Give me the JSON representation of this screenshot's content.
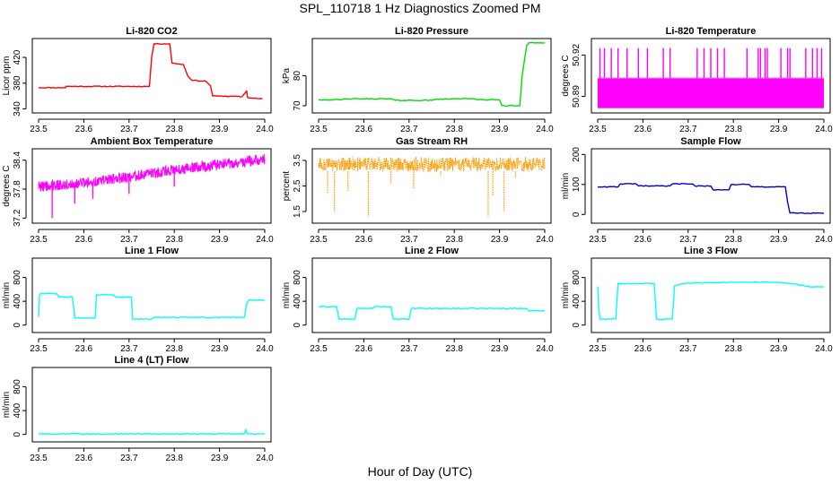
{
  "figure": {
    "title": "SPL_110718  1 Hz Diagnostics Zoomed PM",
    "xlabel": "Hour of Day (UTC)"
  },
  "chart_data": [
    {
      "type": "line",
      "title": "Li-820 CO2",
      "ylabel": "Licor ppm",
      "color": "#ff0000",
      "xlim": [
        23.5,
        24.0
      ],
      "ylim": [
        338,
        445
      ],
      "grid": false,
      "xticks": [
        "23.5",
        "23.6",
        "23.7",
        "23.8",
        "23.9",
        "24.0"
      ],
      "yticks": [
        {
          "v": 340,
          "label": "340"
        },
        {
          "v": 380,
          "label": "380"
        },
        {
          "v": 420,
          "label": "420"
        }
      ],
      "x": [
        23.5,
        23.56,
        23.56,
        23.745,
        23.75,
        23.755,
        23.79,
        23.795,
        23.82,
        23.83,
        23.84,
        23.85,
        23.87,
        23.88,
        23.885,
        23.9,
        23.95,
        23.96,
        23.962,
        23.965,
        23.97,
        23.995
      ],
      "y": [
        373,
        373,
        375,
        375,
        420,
        441,
        441,
        411,
        409,
        391,
        384,
        384,
        383,
        376,
        360,
        360,
        359,
        368,
        358,
        357,
        357,
        356
      ]
    },
    {
      "type": "line",
      "title": "Li-820 Pressure",
      "ylabel": "kPa",
      "color": "#00dd00",
      "xlim": [
        23.5,
        24.0
      ],
      "ylim": [
        68.5,
        91.5
      ],
      "grid": false,
      "xticks": [
        "23.5",
        "23.6",
        "23.7",
        "23.8",
        "23.9",
        "24.0"
      ],
      "yticks": [
        {
          "v": 70,
          "label": "70"
        },
        {
          "v": 80,
          "label": "80"
        }
      ],
      "x": [
        23.5,
        23.55,
        23.56,
        23.66,
        23.67,
        23.75,
        23.76,
        23.79,
        23.8,
        23.84,
        23.85,
        23.9,
        23.905,
        23.91,
        23.945,
        23.95,
        23.96,
        23.965,
        23.97,
        24.0
      ],
      "y": [
        72,
        72,
        72.3,
        72.3,
        71.8,
        71.8,
        72.2,
        72.2,
        72.4,
        72.4,
        72,
        72,
        70.1,
        70,
        70,
        80,
        90,
        91,
        91,
        91
      ]
    },
    {
      "type": "line",
      "title": "Li-820 Temperature",
      "ylabel": "degrees C",
      "color": "#ff00ff",
      "xlim": [
        23.5,
        24.0
      ],
      "ylim": [
        50.88,
        50.93
      ],
      "grid": false,
      "xticks": [
        "23.5",
        "23.6",
        "23.7",
        "23.8",
        "23.9",
        "24.0"
      ],
      "yticks": [
        {
          "v": 50.89,
          "label": "50.89"
        },
        {
          "v": 50.92,
          "label": "50.92"
        }
      ],
      "band": {
        "low": 50.8815,
        "high": 50.9033
      },
      "spikes": [
        23.505,
        23.515,
        23.53,
        23.545,
        23.565,
        23.59,
        23.61,
        23.645,
        23.66,
        23.72,
        23.735,
        23.75,
        23.765,
        23.78,
        23.83,
        23.855,
        23.86,
        23.87,
        23.875,
        23.905,
        23.92,
        23.925,
        23.96,
        23.975,
        23.985,
        23.995
      ],
      "spike_top": 50.925
    },
    {
      "type": "line",
      "title": "Ambient Box Temperature",
      "ylabel": "degrees C",
      "color": "#ff00ff",
      "xlim": [
        23.5,
        24.0
      ],
      "ylim": [
        37.15,
        38.58
      ],
      "grid": false,
      "xticks": [
        "23.5",
        "23.6",
        "23.7",
        "23.8",
        "23.9",
        "24.0"
      ],
      "yticks": [
        {
          "v": 37.2,
          "label": "37.2"
        },
        {
          "v": 37.8,
          "label": "37.8"
        },
        {
          "v": 38.4,
          "label": "38.4"
        }
      ],
      "x": [
        23.5,
        23.6,
        23.7,
        23.8,
        23.9,
        24.0
      ],
      "y": [
        37.85,
        37.93,
        38.05,
        38.2,
        38.31,
        38.42
      ],
      "spread": 0.11,
      "dips": [
        {
          "x": 23.53,
          "y": 37.2
        },
        {
          "x": 23.58,
          "y": 37.5
        },
        {
          "x": 23.62,
          "y": 37.6
        },
        {
          "x": 23.7,
          "y": 37.7
        },
        {
          "x": 23.8,
          "y": 37.85
        }
      ]
    },
    {
      "type": "scatter",
      "title": "Gas Stream RH",
      "ylabel": "percent",
      "color": "#ff9900",
      "xlim": [
        23.5,
        24.0
      ],
      "ylim": [
        1.15,
        3.85
      ],
      "grid": false,
      "xticks": [
        "23.5",
        "23.6",
        "23.7",
        "23.8",
        "23.9",
        "24.0"
      ],
      "yticks": [
        {
          "v": 1.5,
          "label": "1.5"
        },
        {
          "v": 2.5,
          "label": "2.5"
        },
        {
          "v": 3.5,
          "label": "3.5"
        }
      ],
      "level": 3.35,
      "spread": 0.28,
      "dips": [
        {
          "x": 23.52,
          "y": 2.2
        },
        {
          "x": 23.535,
          "y": 1.5
        },
        {
          "x": 23.565,
          "y": 2.3
        },
        {
          "x": 23.61,
          "y": 1.3
        },
        {
          "x": 23.66,
          "y": 2.6
        },
        {
          "x": 23.71,
          "y": 2.4
        },
        {
          "x": 23.77,
          "y": 2.9
        },
        {
          "x": 23.875,
          "y": 1.3
        },
        {
          "x": 23.885,
          "y": 2.1
        },
        {
          "x": 23.91,
          "y": 1.5
        },
        {
          "x": 23.935,
          "y": 2.8
        },
        {
          "x": 23.965,
          "y": 3.1
        }
      ]
    },
    {
      "type": "line",
      "title": "Sample Flow",
      "ylabel": "ml/min",
      "color": "#0000cc",
      "xlim": [
        23.5,
        24.0
      ],
      "ylim": [
        -20,
        210
      ],
      "grid": false,
      "xticks": [
        "23.5",
        "23.6",
        "23.7",
        "23.8",
        "23.9",
        "24.0"
      ],
      "yticks": [
        {
          "v": 0,
          "label": "0"
        },
        {
          "v": 100,
          "label": "100"
        },
        {
          "v": 200,
          "label": "200"
        }
      ],
      "x": [
        23.5,
        23.545,
        23.55,
        23.585,
        23.59,
        23.66,
        23.665,
        23.71,
        23.715,
        23.75,
        23.755,
        23.79,
        23.795,
        23.835,
        23.84,
        23.915,
        23.92,
        23.925,
        24.0
      ],
      "y": [
        92,
        92,
        102,
        102,
        95,
        95,
        102,
        102,
        95,
        95,
        82,
        82,
        100,
        100,
        92,
        92,
        40,
        5,
        4
      ]
    },
    {
      "type": "line",
      "title": "Line 1 Flow",
      "ylabel": "ml/min",
      "color": "#00ffff",
      "xlim": [
        23.5,
        24.0
      ],
      "ylim": [
        -80,
        1080
      ],
      "grid": false,
      "xticks": [
        "23.5",
        "23.6",
        "23.7",
        "23.8",
        "23.9",
        "24.0"
      ],
      "yticks": [
        {
          "v": 0,
          "label": "0"
        },
        {
          "v": 400,
          "label": "400"
        },
        {
          "v": 800,
          "label": "800"
        }
      ],
      "x": [
        23.5,
        23.502,
        23.505,
        23.54,
        23.545,
        23.575,
        23.58,
        23.625,
        23.628,
        23.665,
        23.67,
        23.705,
        23.708,
        23.75,
        23.755,
        23.955,
        23.96,
        23.965,
        24.0
      ],
      "y": [
        140,
        500,
        530,
        530,
        470,
        470,
        120,
        120,
        510,
        510,
        470,
        470,
        100,
        100,
        130,
        130,
        360,
        420,
        420
      ]
    },
    {
      "type": "line",
      "title": "Line 2 Flow",
      "ylabel": "ml/min",
      "color": "#00ffff",
      "xlim": [
        23.5,
        24.0
      ],
      "ylim": [
        -80,
        1080
      ],
      "grid": false,
      "xticks": [
        "23.5",
        "23.6",
        "23.7",
        "23.8",
        "23.9",
        "24.0"
      ],
      "yticks": [
        {
          "v": 0,
          "label": "0"
        },
        {
          "v": 400,
          "label": "400"
        },
        {
          "v": 800,
          "label": "800"
        }
      ],
      "x": [
        23.5,
        23.54,
        23.545,
        23.58,
        23.585,
        23.62,
        23.625,
        23.66,
        23.665,
        23.7,
        23.705,
        23.96,
        23.965,
        24.0
      ],
      "y": [
        310,
        310,
        100,
        100,
        280,
        280,
        310,
        310,
        100,
        100,
        280,
        280,
        240,
        240
      ]
    },
    {
      "type": "line",
      "title": "Line 3 Flow",
      "ylabel": "ml/min",
      "color": "#00ffff",
      "xlim": [
        23.5,
        24.0
      ],
      "ylim": [
        -80,
        1080
      ],
      "grid": false,
      "xticks": [
        "23.5",
        "23.6",
        "23.7",
        "23.8",
        "23.9",
        "24.0"
      ],
      "yticks": [
        {
          "v": 0,
          "label": "0"
        },
        {
          "v": 400,
          "label": "400"
        },
        {
          "v": 800,
          "label": "800"
        }
      ],
      "x": [
        23.5,
        23.502,
        23.505,
        23.54,
        23.545,
        23.625,
        23.63,
        23.665,
        23.67,
        23.69,
        23.8,
        23.89,
        23.93,
        23.97,
        24.0
      ],
      "y": [
        650,
        300,
        100,
        100,
        700,
        700,
        100,
        100,
        660,
        700,
        720,
        720,
        700,
        640,
        640
      ]
    },
    {
      "type": "line",
      "title": "Line 4 (LT) Flow",
      "ylabel": "ml/min",
      "color": "#00ffff",
      "xlim": [
        23.5,
        24.0
      ],
      "ylim": [
        -80,
        1080
      ],
      "grid": false,
      "xticks": [
        "23.5",
        "23.6",
        "23.7",
        "23.8",
        "23.9",
        "24.0"
      ],
      "yticks": [
        {
          "v": 0,
          "label": "0"
        },
        {
          "v": 400,
          "label": "400"
        },
        {
          "v": 800,
          "label": "800"
        }
      ],
      "x": [
        23.5,
        23.955,
        23.958,
        23.962,
        23.965,
        24.0
      ],
      "y": [
        10,
        10,
        80,
        10,
        12,
        12
      ]
    }
  ]
}
